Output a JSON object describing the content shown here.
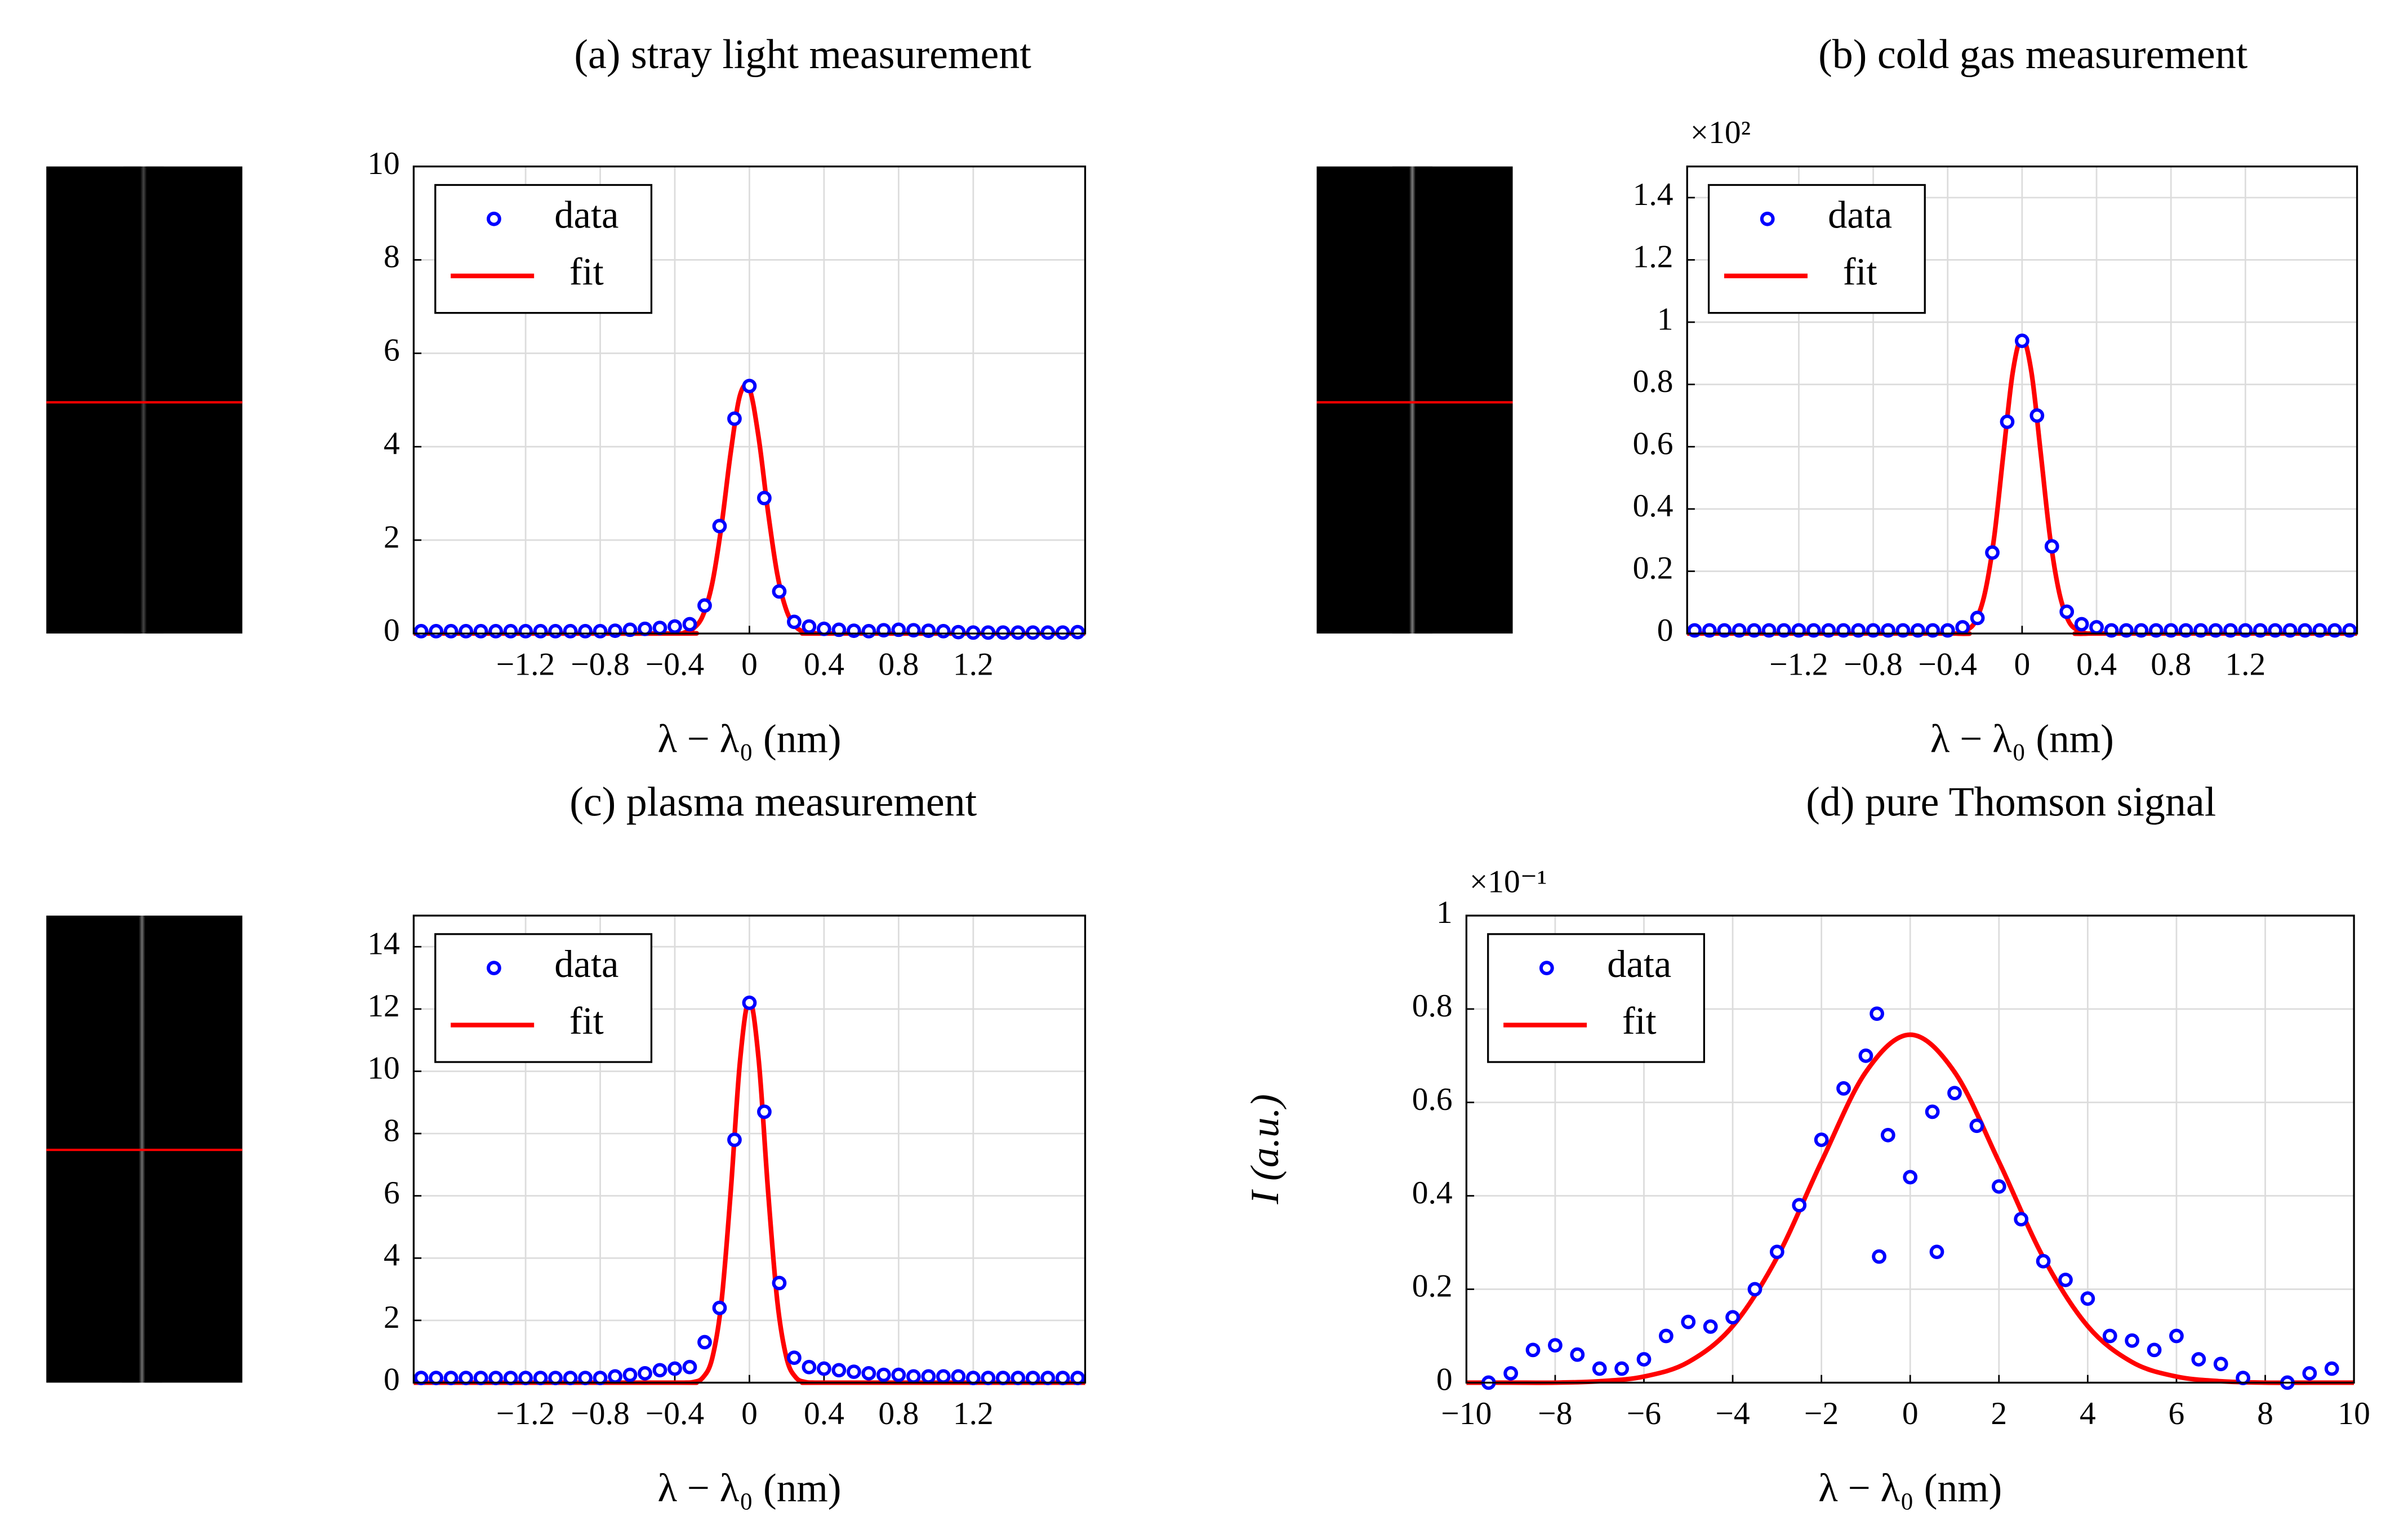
{
  "chart_data": [
    {
      "type": "scatter",
      "title": "(a) stray light measurement",
      "xlabel": "λ − λ₀ (nm)",
      "legend": "upper left",
      "grid": true,
      "xlim": [
        -1.8,
        1.8
      ],
      "ylim": [
        0,
        10
      ],
      "xticks": [
        {
          "value": -1.2,
          "label": "−1.2"
        },
        {
          "value": -0.8,
          "label": "−0.8"
        },
        {
          "value": -0.4,
          "label": "−0.4"
        },
        0,
        0.4,
        0.8,
        1.2
      ],
      "yticks": [
        0,
        2,
        4,
        6,
        8,
        10
      ],
      "series": [
        {
          "name": "data",
          "color": "#0000ff",
          "mode": "markers",
          "x": [
            -1.76,
            -1.68,
            -1.6,
            -1.52,
            -1.44,
            -1.36,
            -1.28,
            -1.2,
            -1.12,
            -1.04,
            -0.96,
            -0.88,
            -0.8,
            -0.72,
            -0.64,
            -0.56,
            -0.48,
            -0.4,
            -0.32,
            -0.24,
            -0.16,
            -0.08,
            0,
            0.08,
            0.16,
            0.24,
            0.32,
            0.4,
            0.48,
            0.56,
            0.64,
            0.72,
            0.8,
            0.88,
            0.96,
            1.04,
            1.12,
            1.2,
            1.28,
            1.36,
            1.44,
            1.52,
            1.6,
            1.68,
            1.76
          ],
          "values": [
            0.05,
            0.05,
            0.05,
            0.05,
            0.05,
            0.05,
            0.05,
            0.05,
            0.05,
            0.05,
            0.05,
            0.05,
            0.05,
            0.06,
            0.08,
            0.1,
            0.12,
            0.15,
            0.2,
            0.6,
            2.3,
            4.6,
            5.3,
            2.9,
            0.9,
            0.25,
            0.15,
            0.1,
            0.08,
            0.06,
            0.05,
            0.07,
            0.08,
            0.07,
            0.06,
            0.05,
            0.03,
            0.02,
            0.02,
            0.02,
            0.02,
            0.02,
            0.02,
            0.02,
            0.03
          ]
        },
        {
          "name": "fit",
          "color": "#ff0000",
          "mode": "line",
          "x": [
            -1.8,
            -0.4,
            -0.35,
            -0.3,
            -0.25,
            -0.2,
            -0.15,
            -0.1,
            -0.05,
            0,
            0.05,
            0.1,
            0.15,
            0.2,
            0.25,
            0.3,
            0.35,
            0.4,
            1.8
          ],
          "values": [
            0,
            0,
            0.02,
            0.11,
            0.38,
            1.06,
            2.3,
            3.88,
            5.11,
            5.24,
            4.18,
            2.6,
            1.26,
            0.48,
            0.14,
            0.03,
            0.01,
            0,
            0
          ]
        }
      ]
    },
    {
      "type": "scatter",
      "title": "(b) cold gas measurement",
      "xlabel": "λ − λ₀ (nm)",
      "y_multiplier": "×10²",
      "legend": "upper left",
      "grid": true,
      "xlim": [
        -1.8,
        1.8
      ],
      "ylim": [
        0,
        1.5
      ],
      "xticks": [
        {
          "value": -1.2,
          "label": "−1.2"
        },
        {
          "value": -0.8,
          "label": "−0.8"
        },
        {
          "value": -0.4,
          "label": "−0.4"
        },
        0,
        0.4,
        0.8,
        1.2
      ],
      "yticks": [
        0,
        0.2,
        0.4,
        0.6,
        0.8,
        1,
        1.2,
        1.4
      ],
      "series": [
        {
          "name": "data",
          "color": "#0000ff",
          "mode": "markers",
          "x": [
            -1.76,
            -1.68,
            -1.6,
            -1.52,
            -1.44,
            -1.36,
            -1.28,
            -1.2,
            -1.12,
            -1.04,
            -0.96,
            -0.88,
            -0.8,
            -0.72,
            -0.64,
            -0.56,
            -0.48,
            -0.4,
            -0.32,
            -0.24,
            -0.16,
            -0.08,
            0,
            0.08,
            0.16,
            0.24,
            0.32,
            0.4,
            0.48,
            0.56,
            0.64,
            0.72,
            0.8,
            0.88,
            0.96,
            1.04,
            1.12,
            1.2,
            1.28,
            1.36,
            1.44,
            1.52,
            1.6,
            1.68,
            1.76
          ],
          "values": [
            0.01,
            0.01,
            0.01,
            0.01,
            0.01,
            0.01,
            0.01,
            0.01,
            0.01,
            0.01,
            0.01,
            0.01,
            0.01,
            0.01,
            0.01,
            0.01,
            0.01,
            0.01,
            0.02,
            0.05,
            0.26,
            0.68,
            0.94,
            0.7,
            0.28,
            0.07,
            0.03,
            0.02,
            0.01,
            0.01,
            0.01,
            0.01,
            0.01,
            0.01,
            0.01,
            0.01,
            0.01,
            0.01,
            0.01,
            0.01,
            0.01,
            0.01,
            0.01,
            0.01,
            0.01
          ]
        },
        {
          "name": "fit",
          "color": "#ff0000",
          "mode": "line",
          "x": [
            -1.8,
            -0.4,
            -0.35,
            -0.3,
            -0.25,
            -0.2,
            -0.15,
            -0.1,
            -0.05,
            0,
            0.05,
            0.1,
            0.15,
            0.2,
            0.25,
            0.3,
            0.35,
            0.4,
            1.8
          ],
          "values": [
            0,
            0,
            0,
            0.01,
            0.04,
            0.13,
            0.31,
            0.58,
            0.84,
            0.95,
            0.84,
            0.58,
            0.31,
            0.13,
            0.04,
            0.01,
            0,
            0,
            0
          ]
        }
      ]
    },
    {
      "type": "scatter",
      "title": "(c) plasma measurement",
      "xlabel": "λ − λ₀ (nm)",
      "legend": "upper left",
      "grid": true,
      "xlim": [
        -1.8,
        1.8
      ],
      "ylim": [
        0,
        15
      ],
      "xticks": [
        {
          "value": -1.2,
          "label": "−1.2"
        },
        {
          "value": -0.8,
          "label": "−0.8"
        },
        {
          "value": -0.4,
          "label": "−0.4"
        },
        0,
        0.4,
        0.8,
        1.2
      ],
      "yticks": [
        0,
        2,
        4,
        6,
        8,
        10,
        12,
        14
      ],
      "series": [
        {
          "name": "data",
          "color": "#0000ff",
          "mode": "markers",
          "x": [
            -1.76,
            -1.68,
            -1.6,
            -1.52,
            -1.44,
            -1.36,
            -1.28,
            -1.2,
            -1.12,
            -1.04,
            -0.96,
            -0.88,
            -0.8,
            -0.72,
            -0.64,
            -0.56,
            -0.48,
            -0.4,
            -0.32,
            -0.24,
            -0.16,
            -0.08,
            0,
            0.08,
            0.16,
            0.24,
            0.32,
            0.4,
            0.48,
            0.56,
            0.64,
            0.72,
            0.8,
            0.88,
            0.96,
            1.04,
            1.12,
            1.2,
            1.28,
            1.36,
            1.44,
            1.52,
            1.6,
            1.68,
            1.76
          ],
          "values": [
            0.15,
            0.15,
            0.15,
            0.15,
            0.15,
            0.15,
            0.15,
            0.15,
            0.15,
            0.15,
            0.15,
            0.15,
            0.15,
            0.2,
            0.25,
            0.3,
            0.4,
            0.45,
            0.5,
            1.3,
            2.4,
            7.8,
            12.2,
            8.7,
            3.2,
            0.8,
            0.5,
            0.45,
            0.4,
            0.35,
            0.3,
            0.25,
            0.25,
            0.2,
            0.2,
            0.2,
            0.2,
            0.15,
            0.15,
            0.15,
            0.15,
            0.15,
            0.15,
            0.15,
            0.15
          ]
        },
        {
          "name": "fit",
          "color": "#ff0000",
          "mode": "line",
          "x": [
            -1.8,
            -0.4,
            -0.35,
            -0.3,
            -0.25,
            -0.2,
            -0.15,
            -0.1,
            -0.05,
            0,
            0.05,
            0.1,
            0.15,
            0.2,
            0.25,
            0.3,
            0.35,
            0.4,
            1.8
          ],
          "values": [
            0,
            0,
            0,
            0.02,
            0.16,
            0.77,
            2.59,
            6.15,
            10.35,
            12.3,
            10.35,
            6.15,
            2.59,
            0.77,
            0.16,
            0.02,
            0,
            0,
            0
          ]
        }
      ]
    },
    {
      "type": "scatter",
      "title": "(d) pure Thomson signal",
      "xlabel": "λ − λ₀ (nm)",
      "ylabel": "I (a.u.)",
      "y_multiplier": "×10⁻¹",
      "legend": "upper left",
      "grid": true,
      "xlim": [
        -10,
        10
      ],
      "ylim": [
        0,
        1
      ],
      "xticks": [
        {
          "value": -10,
          "label": "−10"
        },
        {
          "value": -8,
          "label": "−8"
        },
        {
          "value": -6,
          "label": "−6"
        },
        {
          "value": -4,
          "label": "−4"
        },
        {
          "value": -2,
          "label": "−2"
        },
        0,
        2,
        4,
        6,
        8,
        10
      ],
      "yticks": [
        0,
        0.2,
        0.4,
        0.6,
        0.8,
        1
      ],
      "series": [
        {
          "name": "data",
          "color": "#0000ff",
          "mode": "markers",
          "x": [
            -9.5,
            -9,
            -8.5,
            -8,
            -7.5,
            -7,
            -6.5,
            -6,
            -5.5,
            -5,
            -4.5,
            -4,
            -3.5,
            -3,
            -2.5,
            -2,
            -1.5,
            -1,
            -0.75,
            -0.7,
            -0.5,
            0,
            0.5,
            0.6,
            1,
            1.5,
            2,
            2.5,
            3,
            3.5,
            4,
            4.5,
            5,
            5.5,
            6,
            6.5,
            7,
            7.5,
            8.5,
            9,
            9.5
          ],
          "values": [
            0,
            0.02,
            0.07,
            0.08,
            0.06,
            0.03,
            0.03,
            0.05,
            0.1,
            0.13,
            0.12,
            0.14,
            0.2,
            0.28,
            0.38,
            0.52,
            0.63,
            0.7,
            0.79,
            0.27,
            0.53,
            0.44,
            0.58,
            0.28,
            0.62,
            0.55,
            0.42,
            0.35,
            0.26,
            0.22,
            0.18,
            0.1,
            0.09,
            0.07,
            0.1,
            0.05,
            0.04,
            0.01,
            0,
            0.02,
            0.03
          ]
        },
        {
          "name": "fit",
          "color": "#ff0000",
          "mode": "line",
          "x": [
            -10,
            -9,
            -8,
            -7,
            -6,
            -5,
            -4,
            -3,
            -2,
            -1,
            0,
            1,
            2,
            3,
            4,
            5,
            6,
            7,
            8,
            9,
            10
          ],
          "values": [
            0,
            0,
            0,
            0.003,
            0.013,
            0.044,
            0.121,
            0.268,
            0.473,
            0.665,
            0.745,
            0.665,
            0.473,
            0.268,
            0.121,
            0.044,
            0.013,
            0.003,
            0,
            0,
            0
          ]
        }
      ]
    }
  ]
}
